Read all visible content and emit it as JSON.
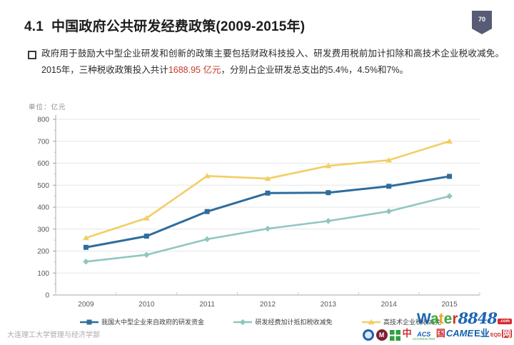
{
  "header": {
    "title": "4.1  中国政府公共研发经费政策(2009-2015年)",
    "page_number": "70"
  },
  "bullet": {
    "pre": "政府用于鼓励大中型企业研发和创新的政策主要包括财政科技投入、研发费用税前加计扣除和高技术企业税收减免。2015年，三种税收政策投入共计",
    "highlight": "1688.95 亿元",
    "post": "，分别占企业研发总支出的5.4%，4.5%和7%。"
  },
  "chart_data": {
    "type": "line",
    "title": "",
    "unit_label": "单位：亿元",
    "xlabel": "",
    "ylabel": "亿元",
    "categories": [
      "2009",
      "2010",
      "2011",
      "2012",
      "2013",
      "2014",
      "2015"
    ],
    "series": [
      {
        "name": "我国大中型企业来自政府的研发资金",
        "color": "#2E6D9E",
        "marker": "square",
        "values": [
          217,
          268,
          380,
          464,
          466,
          495,
          540
        ]
      },
      {
        "name": "研发经费加计抵扣税收减免",
        "color": "#8FC7C0",
        "marker": "diamond",
        "values": [
          152,
          183,
          254,
          302,
          337,
          381,
          450
        ]
      },
      {
        "name": "高技术企业税收减免",
        "color": "#F3CE63",
        "marker": "triangle",
        "values": [
          260,
          350,
          542,
          530,
          588,
          614,
          700
        ]
      }
    ],
    "ylim": [
      0,
      800
    ],
    "ytick_step": 100,
    "grid": true,
    "legend_position": "bottom"
  },
  "footer": {
    "affiliation": "大连理工大学管理与经济学部"
  },
  "watermark": {
    "brand_letters": [
      {
        "ch": "W",
        "color": "#1d66b5"
      },
      {
        "ch": "a",
        "color": "#3da43b"
      },
      {
        "ch": "t",
        "color": "#f0a02f"
      },
      {
        "ch": "e",
        "color": "#3da43b"
      },
      {
        "ch": "r",
        "color": "#cc3333"
      }
    ],
    "brand_suffix": "8848",
    "com_badge": ".com",
    "m_letter": "M",
    "overlay_parts": [
      {
        "t": "中",
        "color": "#cf2e2e",
        "size": 13
      },
      {
        "t": "ACS",
        "color": "#1460b0",
        "size": 9,
        "sub": "ACCREDITED"
      },
      {
        "t": "国",
        "color": "#cf2e2e",
        "size": 13
      },
      {
        "t": "CAME",
        "color": "#1460b0",
        "size": 13,
        "italic": true
      },
      {
        "t": "E业",
        "color": "#1460b0",
        "size": 13
      },
      {
        "t": "EQD",
        "color": "#cf2e2e",
        "size": 7
      },
      {
        "t": "网",
        "color": "#ffffff",
        "bg": "#cf2e2e",
        "size": 12
      }
    ]
  }
}
